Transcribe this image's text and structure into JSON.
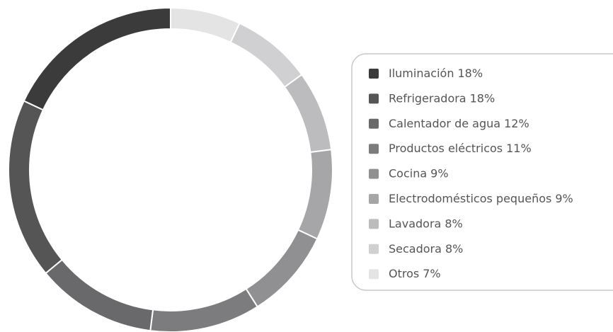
{
  "chart_data": {
    "type": "donut",
    "categories": [
      "Iluminación",
      "Refrigeradora",
      "Calentador de agua",
      "Productos eléctricos",
      "Cocina",
      "Electrodomésticos pequeños",
      "Lavadora",
      "Secadora",
      "Otros"
    ],
    "values": [
      18,
      18,
      12,
      11,
      9,
      9,
      8,
      8,
      7
    ],
    "value_labels": [
      "18%",
      "18%",
      "12%",
      "11%",
      "9%",
      "9%",
      "8%",
      "8%",
      "7%"
    ],
    "colors": [
      "#3b3b3b",
      "#555556",
      "#69696b",
      "#7c7c7e",
      "#909092",
      "#a6a6a8",
      "#bcbcbe",
      "#d0d0d2",
      "#e4e4e5"
    ]
  }
}
